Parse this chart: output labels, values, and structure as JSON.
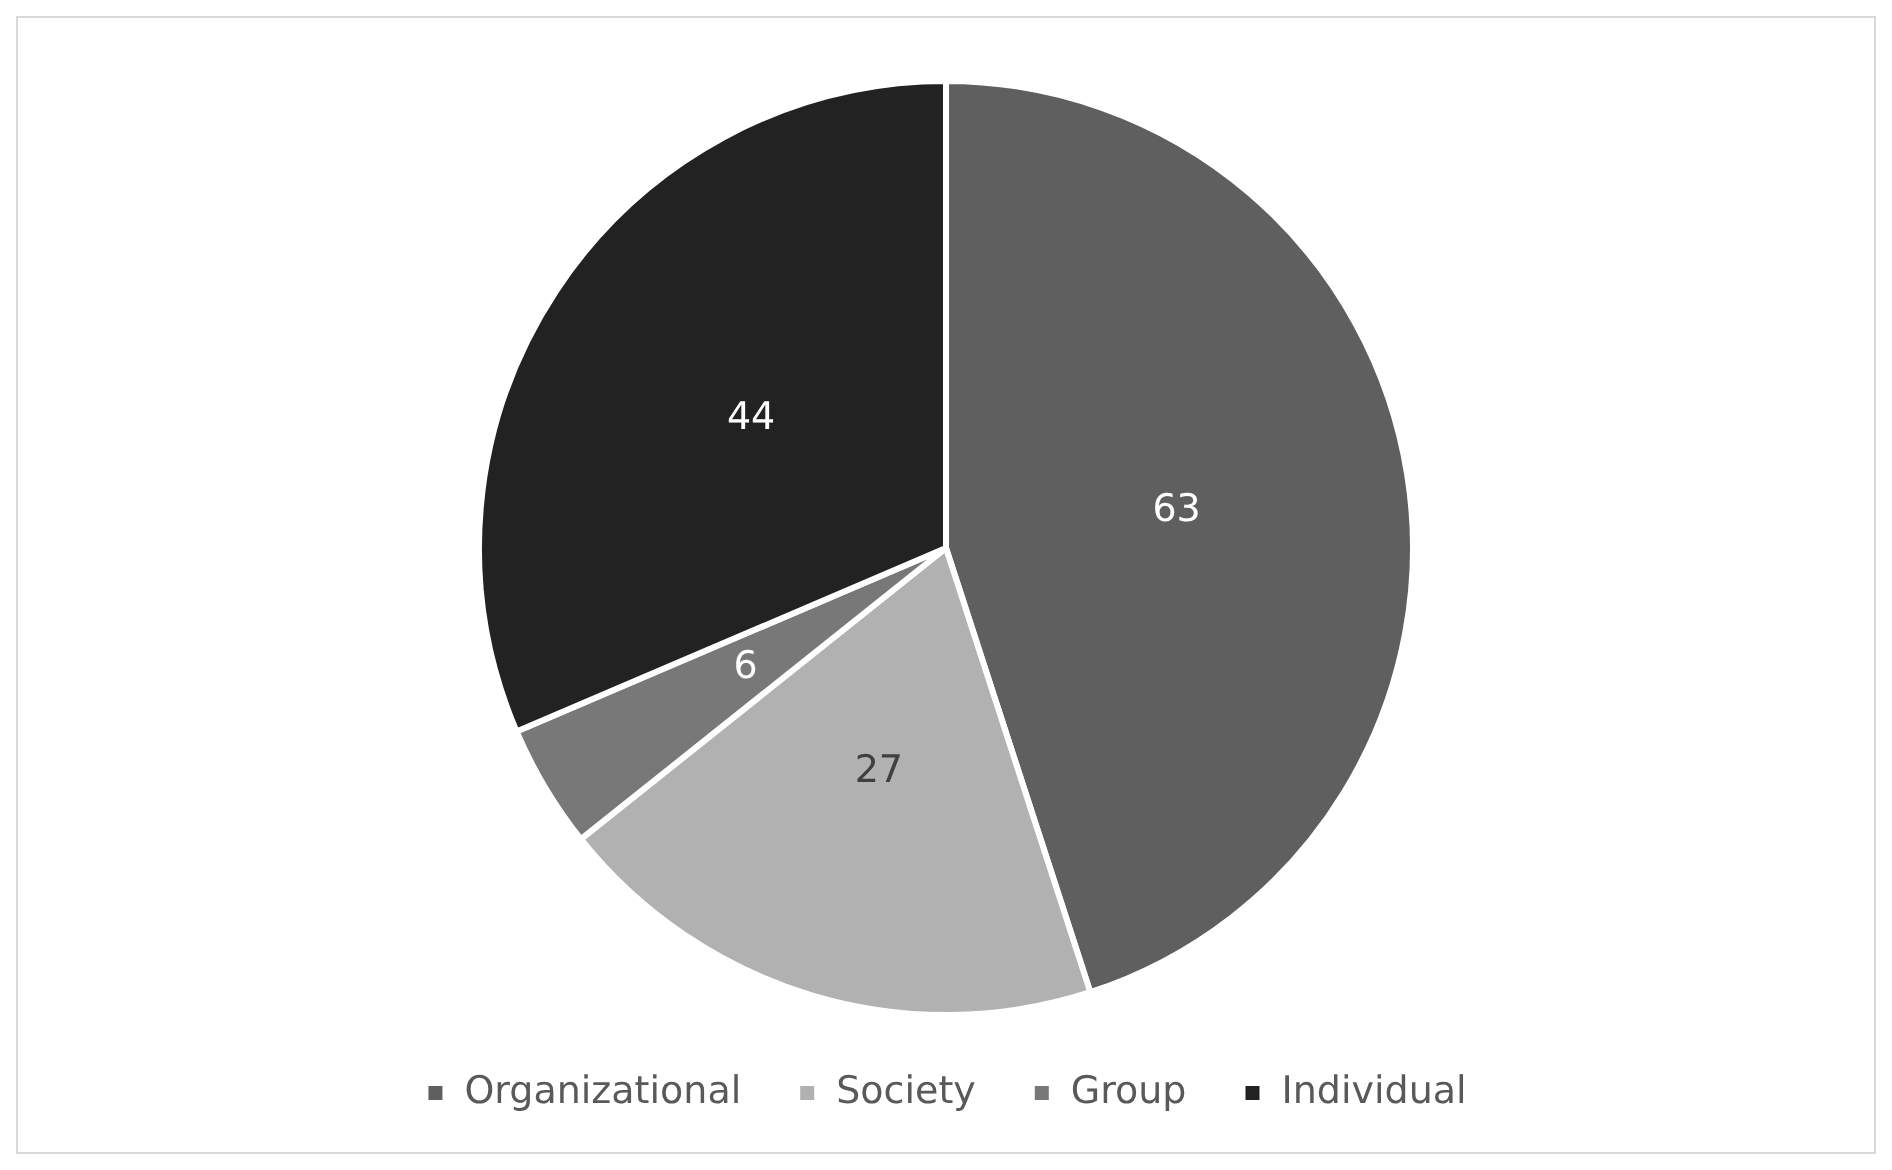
{
  "chart_data": {
    "type": "pie",
    "categories": [
      "Organizational",
      "Society",
      "Group",
      "Individual"
    ],
    "values": [
      63,
      27,
      6,
      44
    ],
    "colors": [
      "#5f5f5f",
      "#b1b1b1",
      "#787878",
      "#222222"
    ],
    "data_labels": true,
    "legend": "bottom"
  }
}
